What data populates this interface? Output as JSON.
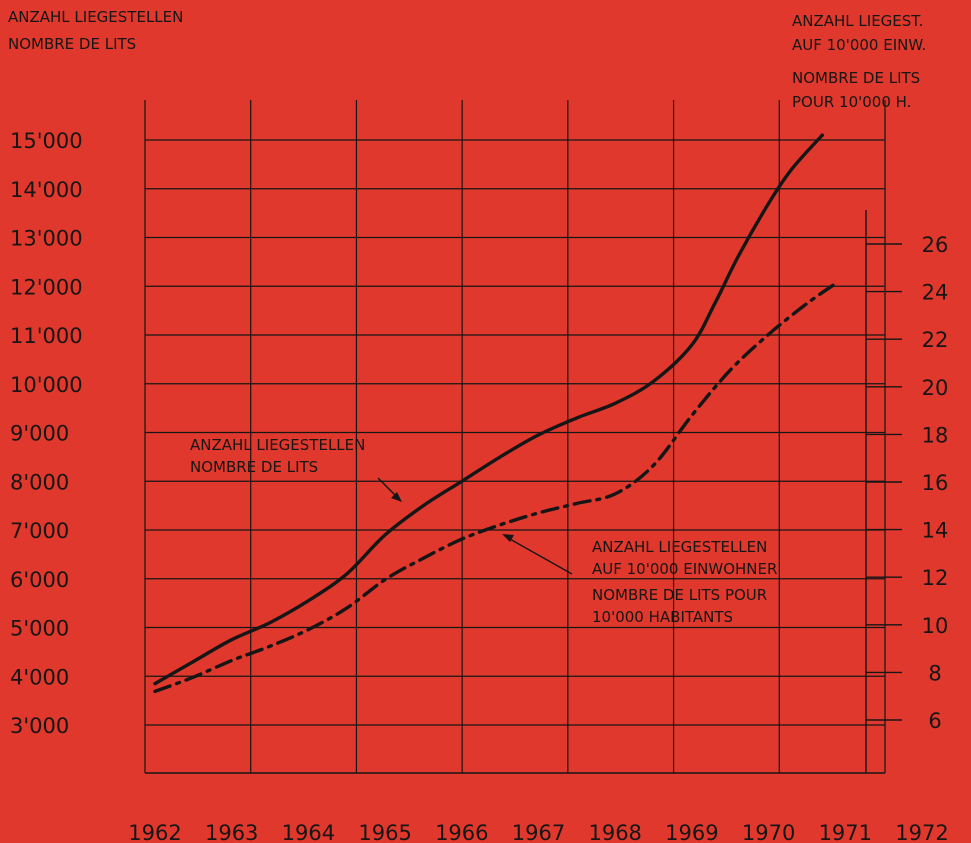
{
  "chart_data": {
    "type": "line",
    "x_ticks": [
      "1962",
      "1963",
      "1964",
      "1965",
      "1966",
      "1967",
      "1968",
      "1969",
      "1970",
      "1971",
      "1972"
    ],
    "xlim": [
      1962,
      1972
    ],
    "left_axis": {
      "title_lines": [
        "ANZAHL LIEGESTELLEN",
        "NOMBRE DE LITS"
      ],
      "ticks": [
        3000,
        4000,
        5000,
        6000,
        7000,
        8000,
        9000,
        10000,
        11000,
        12000,
        13000,
        14000,
        15000
      ],
      "tick_labels": [
        "3'000",
        "4'000",
        "5'000",
        "6'000",
        "7'000",
        "8'000",
        "9'000",
        "10'000",
        "11'000",
        "12'000",
        "13'000",
        "14'000",
        "15'000"
      ]
    },
    "right_axis": {
      "title_lines": [
        "ANZAHL LIEGEST.",
        "AUF 10'000 EINW.",
        "NOMBRE DE LITS",
        "POUR 10'000 H."
      ],
      "ticks": [
        6,
        8,
        10,
        12,
        14,
        16,
        18,
        20,
        22,
        24,
        26
      ],
      "tick_labels": [
        "6",
        "8",
        "10",
        "12",
        "14",
        "16",
        "18",
        "20",
        "22",
        "24",
        "26"
      ]
    },
    "grid": true,
    "series": [
      {
        "name": "ANZAHL LIEGESTELLEN / NOMBRE DE LITS",
        "axis": "left",
        "style": "solid",
        "x": [
          1962,
          1962.5,
          1963,
          1963.5,
          1964,
          1964.5,
          1965,
          1965.5,
          1966,
          1966.5,
          1967,
          1967.5,
          1968,
          1968.5,
          1969,
          1969.3,
          1969.6,
          1970,
          1970.3,
          1970.7
        ],
        "y": [
          3850,
          4300,
          4750,
          5100,
          5550,
          6100,
          6900,
          7500,
          8000,
          8500,
          8950,
          9300,
          9600,
          10050,
          10800,
          11650,
          12600,
          13700,
          14400,
          15100
        ]
      },
      {
        "name": "ANZAHL LIEGESTELLEN AUF 10'000 EINWOHNER / NOMBRE DE LITS POUR 10'000 HABITANTS",
        "axis": "right",
        "style": "dashdot",
        "x": [
          1962,
          1962.5,
          1963,
          1963.5,
          1964,
          1964.5,
          1965,
          1965.5,
          1966,
          1966.5,
          1967,
          1967.5,
          1968,
          1968.5,
          1969,
          1969.5,
          1970,
          1970.5,
          1970.9
        ],
        "y": [
          7.2,
          7.8,
          8.5,
          9.1,
          9.8,
          10.7,
          11.9,
          12.8,
          13.6,
          14.2,
          14.7,
          15.1,
          15.5,
          16.7,
          18.8,
          20.7,
          22.2,
          23.5,
          24.4
        ]
      }
    ],
    "annotations": [
      {
        "lines": [
          "ANZAHL LIEGESTELLEN",
          "NOMBRE DE LITS"
        ],
        "series": 0
      },
      {
        "lines": [
          "ANZAHL LIEGESTELLEN",
          "AUF 10'000 EINWOHNER",
          "NOMBRE DE LITS POUR",
          "10'000 HABITANTS"
        ],
        "series": 1
      }
    ]
  }
}
